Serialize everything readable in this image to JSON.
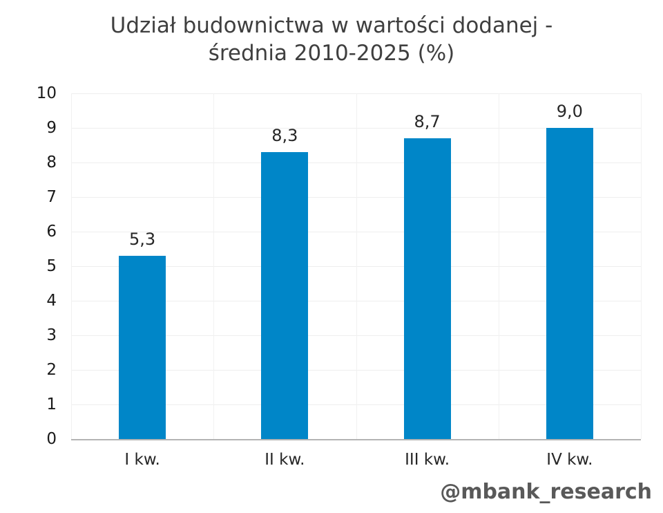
{
  "title": {
    "line1": "Udział budownictwa w wartości dodanej -",
    "line2": "średnia 2010-2025 (%)"
  },
  "footer": {
    "handle": "@mbank_research"
  },
  "colors": {
    "bar": "#0086c8",
    "title_text": "#3f3f3f",
    "tick_text": "#262626",
    "footer_text": "#595959",
    "gridline": "#eeeeee",
    "axis_line": "#b3b3b3"
  },
  "chart_data": {
    "type": "bar",
    "title": "Udział budownictwa w wartości dodanej - średnia 2010-2025 (%)",
    "categories": [
      "I kw.",
      "II kw.",
      "III kw.",
      "IV kw."
    ],
    "values": [
      5.3,
      8.3,
      8.7,
      9.0
    ],
    "value_labels": [
      "5,3",
      "8,3",
      "8,7",
      "9,0"
    ],
    "xlabel": "",
    "ylabel": "",
    "ylim": [
      0,
      10
    ],
    "yticks": [
      0,
      1,
      2,
      3,
      4,
      5,
      6,
      7,
      8,
      9,
      10
    ],
    "grid": true,
    "legend": "none",
    "bar_color": "#0086c8"
  }
}
